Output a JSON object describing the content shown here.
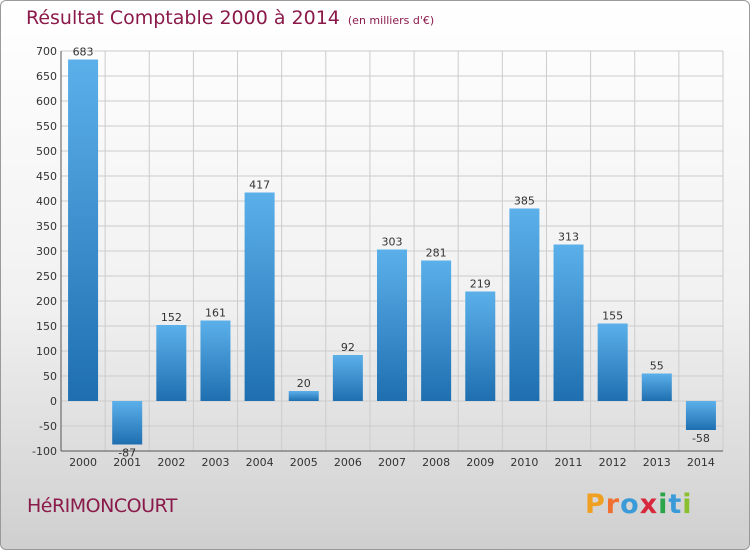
{
  "header": {
    "title": "Résultat Comptable 2000 à 2014",
    "unit": "(en milliers d'€)"
  },
  "commune": "HéRIMONCOURT",
  "logo": {
    "letters": [
      "P",
      "r",
      "o",
      "x",
      "i",
      "t",
      "i"
    ],
    "colors": [
      "#f0a020",
      "#f07030",
      "#3b9ad8",
      "#d8283c",
      "#2aa54a",
      "#3b9ad8",
      "#8ac030"
    ]
  },
  "colors": {
    "bar_light": "#5bb0ea",
    "bar_dark": "#1f6fb0",
    "grid": "#cccccc",
    "title": "#8a1a4a"
  },
  "chart_data": {
    "type": "bar",
    "categories": [
      "2000",
      "2001",
      "2002",
      "2003",
      "2004",
      "2005",
      "2006",
      "2007",
      "2008",
      "2009",
      "2010",
      "2011",
      "2012",
      "2013",
      "2014"
    ],
    "values": [
      683,
      -87,
      152,
      161,
      417,
      20,
      92,
      303,
      281,
      219,
      385,
      313,
      155,
      55,
      -58
    ],
    "ylim": [
      -100,
      700
    ],
    "yticks": [
      -100,
      -50,
      0,
      50,
      100,
      150,
      200,
      250,
      300,
      350,
      400,
      450,
      500,
      550,
      600,
      650,
      700
    ],
    "grid": true,
    "legend": "none"
  }
}
